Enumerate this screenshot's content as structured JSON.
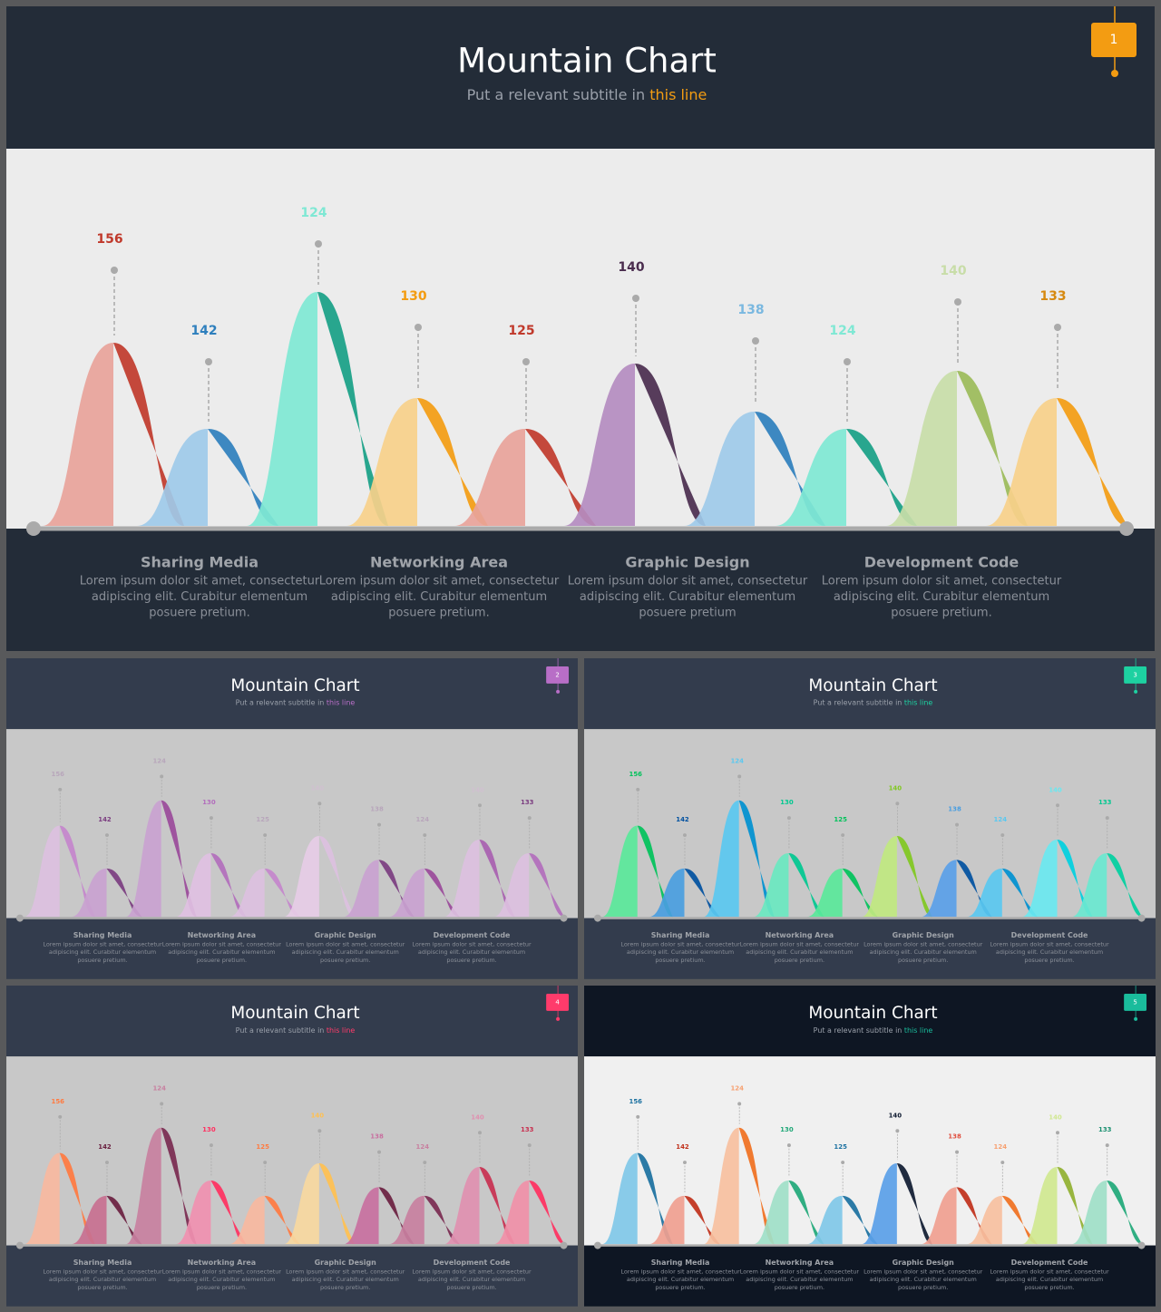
{
  "slides": [
    {
      "title": "Mountain Chart",
      "subtitle": "Put a relevant subtitle in",
      "subtitle_highlight": "this line",
      "page": "1",
      "labels": [
        156,
        142,
        124,
        130,
        125,
        140,
        138,
        124,
        140,
        133
      ],
      "sections": [
        {
          "heading": "Sharing Media",
          "lines": [
            "Lorem ipsum dolor sit amet, consectetur",
            "adipiscing elit. Curabitur elementum",
            "posuere pretium."
          ]
        },
        {
          "heading": "Networking Area",
          "lines": [
            "Lorem ipsum dolor sit amet, consectetur",
            "adipiscing elit. Curabitur elementum",
            "posuere pretium."
          ]
        },
        {
          "heading": "Graphic Design",
          "lines": [
            "Lorem ipsum dolor sit amet, consectetur",
            "adipiscing elit. Curabitur elementum",
            "posuere pretium"
          ]
        },
        {
          "heading": "Development Code",
          "lines": [
            "Lorem ipsum dolor sit amet, consectetur",
            "adipiscing elit. Curabitur elementum",
            "posuere pretium."
          ]
        }
      ]
    },
    {
      "title": "Mountain Chart",
      "subtitle": "Put a relevant subtitle in",
      "subtitle_highlight": "this line",
      "page": "2",
      "labels": [
        156,
        142,
        124,
        130,
        125,
        140,
        138,
        124,
        140,
        133
      ],
      "sections": [
        {
          "heading": "Sharing Media",
          "lines": [
            "Lorem ipsum dolor sit amet, consectetur",
            "adipiscing elit. Curabitur elementum",
            "posuere pretium."
          ]
        },
        {
          "heading": "Networking Area",
          "lines": [
            "Lorem ipsum dolor sit amet, consectetur",
            "adipiscing elit. Curabitur elementum",
            "posuere pretium."
          ]
        },
        {
          "heading": "Graphic Design",
          "lines": [
            "Lorem ipsum dolor sit amet, consectetur",
            "adipiscing elit. Curabitur elementum",
            "posuere pretium."
          ]
        },
        {
          "heading": "Development Code",
          "lines": [
            "Lorem ipsum dolor sit amet, consectetur",
            "adipiscing elit. Curabitur elementum",
            "posuere pretium."
          ]
        }
      ]
    },
    {
      "title": "Mountain Chart",
      "subtitle": "Put a relevant subtitle in",
      "subtitle_highlight": "this line",
      "page": "3",
      "labels": [
        156,
        142,
        124,
        130,
        125,
        140,
        138,
        124,
        140,
        133
      ],
      "sections": [
        {
          "heading": "Sharing Media",
          "lines": [
            "Lorem ipsum dolor sit amet, consectetur",
            "adipiscing elit. Curabitur elementum",
            "posuere pretium."
          ]
        },
        {
          "heading": "Networking Area",
          "lines": [
            "Lorem ipsum dolor sit amet, consectetur",
            "adipiscing elit. Curabitur elementum",
            "posuere pretium."
          ]
        },
        {
          "heading": "Graphic Design",
          "lines": [
            "Lorem ipsum dolor sit amet, consectetur",
            "adipiscing elit. Curabitur elementum",
            "posuere pretium."
          ]
        },
        {
          "heading": "Development Code",
          "lines": [
            "Lorem ipsum dolor sit amet, consectetur",
            "adipiscing elit. Curabitur elementum",
            "posuere pretium."
          ]
        }
      ]
    },
    {
      "title": "Mountain Chart",
      "subtitle": "Put a relevant subtitle in",
      "subtitle_highlight": "this line",
      "page": "4",
      "labels": [
        156,
        142,
        124,
        130,
        125,
        140,
        138,
        124,
        140,
        133
      ],
      "sections": [
        {
          "heading": "Sharing Media",
          "lines": [
            "Lorem ipsum dolor sit amet, consectetur",
            "adipiscing elit. Curabitur elementum",
            "posuere pretium."
          ]
        },
        {
          "heading": "Networking Area",
          "lines": [
            "Lorem ipsum dolor sit amet, consectetur",
            "adipiscing elit. Curabitur elementum",
            "posuere pretium."
          ]
        },
        {
          "heading": "Graphic Design",
          "lines": [
            "Lorem ipsum dolor sit amet, consectetur",
            "adipiscing elit. Curabitur elementum",
            "posuere pretium."
          ]
        },
        {
          "heading": "Development Code",
          "lines": [
            "Lorem ipsum dolor sit amet, consectetur",
            "adipiscing elit. Curabitur elementum",
            "posuere pretium."
          ]
        }
      ]
    },
    {
      "title": "Mountain Chart",
      "subtitle": "Put a relevant subtitle in",
      "subtitle_highlight": "this line",
      "page": "5",
      "labels": [
        156,
        142,
        124,
        130,
        125,
        140,
        138,
        124,
        140,
        133
      ],
      "sections": [
        {
          "heading": "Sharing Media",
          "lines": [
            "Lorem ipsum dolor sit amet, consectetur",
            "adipiscing elit. Curabitur elementum",
            "posuere pretium."
          ]
        },
        {
          "heading": "Networking Area",
          "lines": [
            "Lorem ipsum dolor sit amet, consectetur",
            "adipiscing elit. Curabitur elementum",
            "posuere pretium."
          ]
        },
        {
          "heading": "Graphic Design",
          "lines": [
            "Lorem ipsum dolor sit amet, consectetur",
            "adipiscing elit. Curabitur elementum",
            "posuere pretium."
          ]
        },
        {
          "heading": "Development Code",
          "lines": [
            "Lorem ipsum dolor sit amet, consectetur",
            "adipiscing elit. Curabitur elementum",
            "posuere pretium."
          ]
        }
      ]
    }
  ]
}
